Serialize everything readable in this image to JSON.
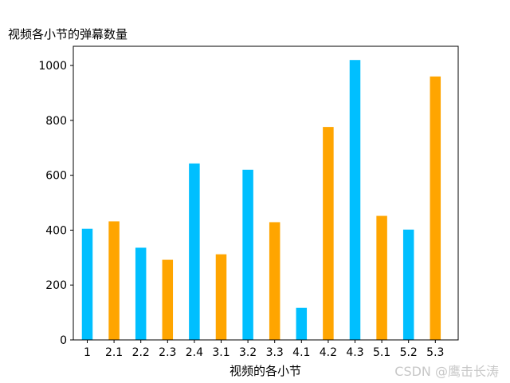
{
  "chart_data": {
    "type": "bar",
    "title": "视频各小节的弹幕数量",
    "xlabel": "视频的各小节",
    "ylabel": "",
    "categories": [
      "1",
      "2.1",
      "2.2",
      "2.3",
      "2.4",
      "3.1",
      "3.2",
      "3.3",
      "4.1",
      "4.2",
      "4.3",
      "5.1",
      "5.2",
      "5.3"
    ],
    "values": [
      405,
      432,
      336,
      292,
      643,
      312,
      620,
      429,
      117,
      776,
      1020,
      452,
      402,
      960
    ],
    "bar_colors": [
      "#00bfff",
      "#ffa500",
      "#00bfff",
      "#ffa500",
      "#00bfff",
      "#ffa500",
      "#00bfff",
      "#ffa500",
      "#00bfff",
      "#ffa500",
      "#00bfff",
      "#ffa500",
      "#00bfff",
      "#ffa500"
    ],
    "ylim": [
      0,
      1070
    ],
    "yticks": [
      0,
      200,
      400,
      600,
      800,
      1000
    ],
    "grid": false,
    "legend": "none"
  },
  "watermark": "CSDN @鹰击长涛"
}
